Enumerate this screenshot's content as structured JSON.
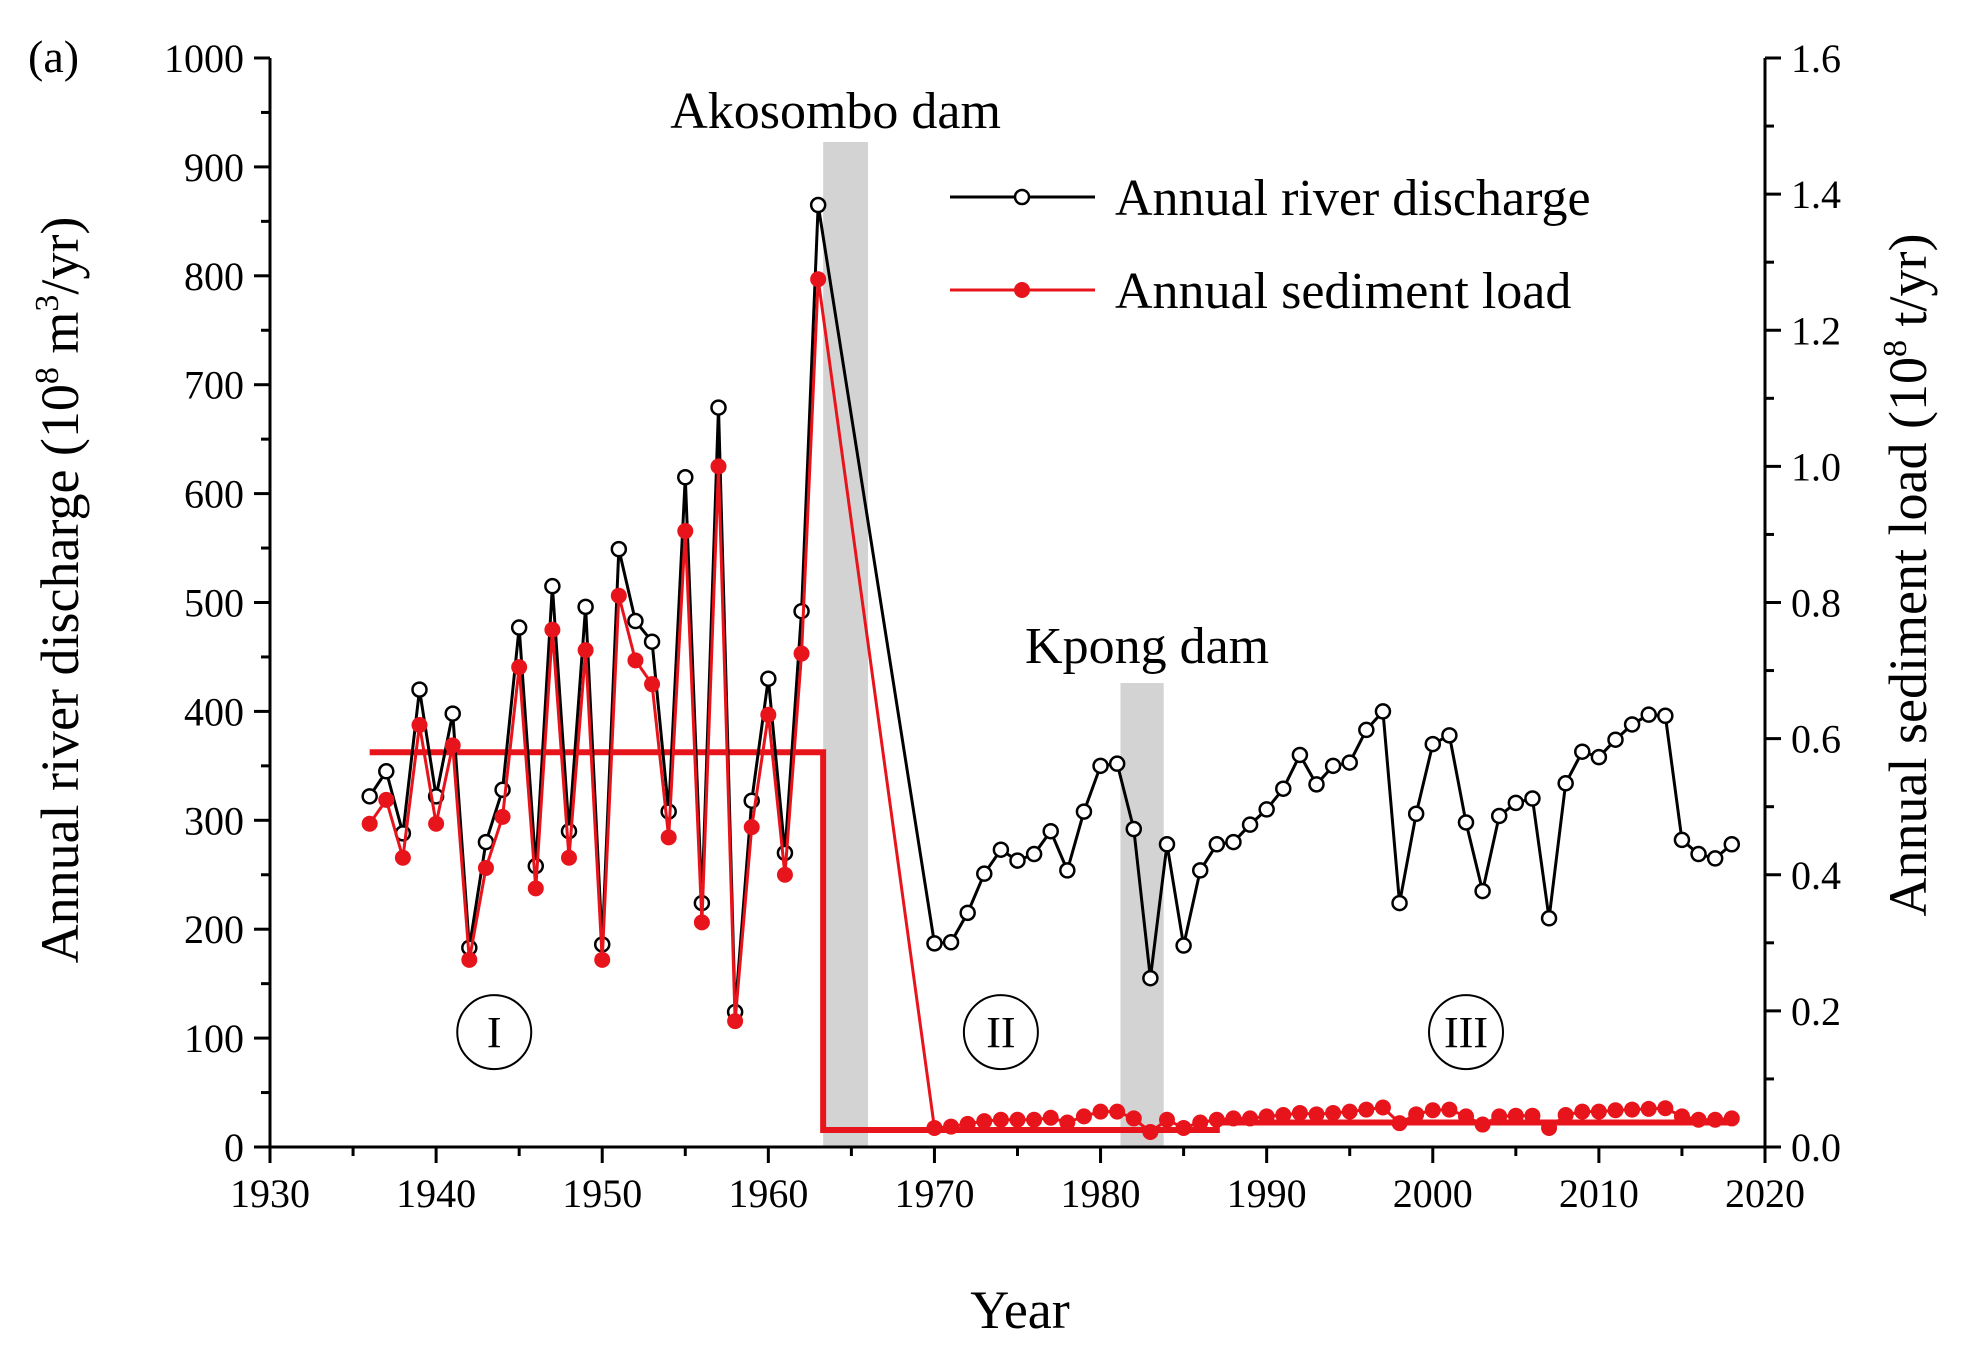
{
  "figure": {
    "panel_label": "(a)"
  },
  "chart_data": {
    "type": "line",
    "xlabel": "Year",
    "ylabel_left": {
      "prefix": "Annual river discharge (10",
      "sup1": "8",
      "mid": " m",
      "sup2": "3",
      "suffix": "/yr)"
    },
    "ylabel_right": {
      "prefix": "Annual sediment load (10",
      "sup1": "8",
      "suffix": " t/yr)"
    },
    "xlim": [
      1930,
      2020
    ],
    "ylim_left": [
      0,
      1000
    ],
    "ylim_right": [
      0,
      1.6
    ],
    "x_ticks": [
      1930,
      1940,
      1950,
      1960,
      1970,
      1980,
      1990,
      2000,
      2010,
      2020
    ],
    "y_left_ticks": [
      0,
      100,
      200,
      300,
      400,
      500,
      600,
      700,
      800,
      900,
      1000
    ],
    "y_right_ticks": [
      "0.0",
      "0.2",
      "0.4",
      "0.6",
      "0.8",
      "1.0",
      "1.2",
      "1.4",
      "1.6"
    ],
    "annotations": {
      "akosombo": {
        "text": "Akosombo dam",
        "years": [
          1963.3,
          1966
        ]
      },
      "kpong": {
        "text": "Kpong dam",
        "years": [
          1981.2,
          1983.8
        ]
      }
    },
    "period_labels": [
      {
        "text": "I",
        "year": 1943.5,
        "value": 100
      },
      {
        "text": "II",
        "year": 1974,
        "value": 100
      },
      {
        "text": "III",
        "year": 2002,
        "value": 100
      }
    ],
    "series": [
      {
        "name": "Annual river discharge",
        "axis": "left",
        "color": "#000000",
        "marker": "open-circle",
        "years": [
          1936,
          1937,
          1938,
          1939,
          1940,
          1941,
          1942,
          1943,
          1944,
          1945,
          1946,
          1947,
          1948,
          1949,
          1950,
          1951,
          1952,
          1953,
          1954,
          1955,
          1956,
          1957,
          1958,
          1959,
          1960,
          1961,
          1962,
          1963,
          1970,
          1971,
          1972,
          1973,
          1974,
          1975,
          1976,
          1977,
          1978,
          1979,
          1980,
          1981,
          1982,
          1983,
          1984,
          1985,
          1986,
          1987,
          1988,
          1989,
          1990,
          1991,
          1992,
          1993,
          1994,
          1995,
          1996,
          1997,
          1998,
          1999,
          2000,
          2001,
          2002,
          2003,
          2004,
          2005,
          2006,
          2007,
          2008,
          2009,
          2010,
          2011,
          2012,
          2013,
          2014,
          2015,
          2016,
          2017,
          2018
        ],
        "values": [
          322,
          345,
          288,
          420,
          322,
          398,
          183,
          280,
          328,
          477,
          258,
          515,
          290,
          496,
          186,
          549,
          483,
          464,
          308,
          615,
          224,
          679,
          124,
          318,
          430,
          270,
          492,
          865,
          187,
          188,
          215,
          251,
          273,
          263,
          269,
          290,
          254,
          308,
          350,
          352,
          292,
          155,
          278,
          185,
          254,
          278,
          280,
          296,
          310,
          329,
          360,
          333,
          350,
          353,
          383,
          400,
          224,
          306,
          370,
          378,
          298,
          235,
          304,
          316,
          320,
          210,
          334,
          363,
          358,
          374,
          388,
          397,
          396,
          282,
          269,
          265,
          278
        ]
      },
      {
        "name": "Annual sediment load",
        "axis": "right",
        "color": "#e8141b",
        "marker": "filled-circle",
        "years": [
          1936,
          1937,
          1938,
          1939,
          1940,
          1941,
          1942,
          1943,
          1944,
          1945,
          1946,
          1947,
          1948,
          1949,
          1950,
          1951,
          1952,
          1953,
          1954,
          1955,
          1956,
          1957,
          1958,
          1959,
          1960,
          1961,
          1962,
          1963,
          1970,
          1971,
          1972,
          1973,
          1974,
          1975,
          1976,
          1977,
          1978,
          1979,
          1980,
          1981,
          1982,
          1983,
          1984,
          1985,
          1986,
          1987,
          1988,
          1989,
          1990,
          1991,
          1992,
          1993,
          1994,
          1995,
          1996,
          1997,
          1998,
          1999,
          2000,
          2001,
          2002,
          2003,
          2004,
          2005,
          2006,
          2007,
          2008,
          2009,
          2010,
          2011,
          2012,
          2013,
          2014,
          2015,
          2016,
          2017,
          2018
        ],
        "values": [
          0.475,
          0.51,
          0.425,
          0.62,
          0.475,
          0.59,
          0.275,
          0.41,
          0.485,
          0.705,
          0.38,
          0.76,
          0.425,
          0.73,
          0.275,
          0.81,
          0.715,
          0.68,
          0.455,
          0.905,
          0.33,
          1.0,
          0.185,
          0.47,
          0.635,
          0.4,
          0.725,
          1.275,
          0.028,
          0.03,
          0.034,
          0.038,
          0.04,
          0.04,
          0.04,
          0.043,
          0.036,
          0.045,
          0.052,
          0.052,
          0.042,
          0.022,
          0.04,
          0.028,
          0.036,
          0.04,
          0.042,
          0.042,
          0.045,
          0.047,
          0.05,
          0.048,
          0.05,
          0.052,
          0.055,
          0.058,
          0.035,
          0.048,
          0.054,
          0.055,
          0.045,
          0.033,
          0.045,
          0.046,
          0.046,
          0.028,
          0.047,
          0.052,
          0.052,
          0.054,
          0.055,
          0.056,
          0.057,
          0.045,
          0.04,
          0.04,
          0.042
        ]
      }
    ],
    "mean_step": {
      "color": "#e8141b",
      "axis": "right",
      "segments": [
        {
          "from": 1936,
          "to": 1963.3,
          "value": 0.58
        },
        {
          "from": 1963.3,
          "to": 1987,
          "value": 0.025
        },
        {
          "from": 1987,
          "to": 2018,
          "value": 0.036
        }
      ]
    }
  }
}
